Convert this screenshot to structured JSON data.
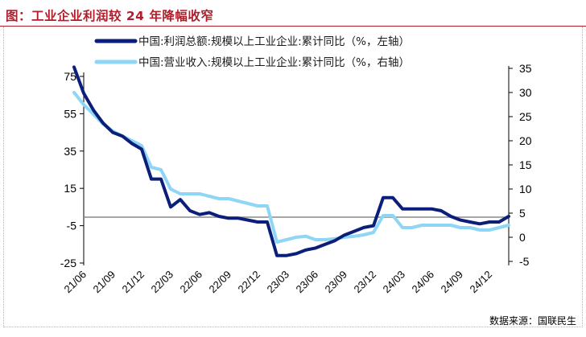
{
  "header": {
    "title": "图：工业企业利润较 24 年降幅收窄"
  },
  "footer": {
    "source": "数据来源：国联民生"
  },
  "chart_data": {
    "type": "line",
    "title": "图：工业企业利润较 24 年降幅收窄",
    "legend_position": "top-left",
    "grid": false,
    "x_ticks": [
      "21/06",
      "21/09",
      "21/12",
      "22/03",
      "22/06",
      "22/09",
      "22/12",
      "23/03",
      "23/06",
      "23/09",
      "23/12",
      "24/03",
      "24/06",
      "24/09",
      "24/12"
    ],
    "y_left": {
      "ticks": [
        75,
        55,
        35,
        15,
        -5,
        -25
      ],
      "range": [
        -25,
        80
      ]
    },
    "y_right": {
      "ticks": [
        35,
        30,
        25,
        20,
        15,
        10,
        5,
        0,
        -5
      ],
      "range": [
        -5,
        35
      ]
    },
    "series": [
      {
        "name": "中国:利润总额:规模以上工业企业:累计同比（%，左轴）",
        "axis": "left",
        "color": "#0b1f7a",
        "x": [
          "21/05",
          "21/06",
          "21/07",
          "21/08",
          "21/09",
          "21/10",
          "21/11",
          "21/12",
          "22/01",
          "22/02",
          "22/03",
          "22/04",
          "22/05",
          "22/06",
          "22/07",
          "22/08",
          "22/09",
          "22/10",
          "22/11",
          "22/12",
          "23/01",
          "23/02",
          "23/03",
          "23/04",
          "23/05",
          "23/06",
          "23/07",
          "23/08",
          "23/09",
          "23/10",
          "23/11",
          "23/12",
          "24/01",
          "24/02",
          "24/03",
          "24/04",
          "24/05",
          "24/06",
          "24/07",
          "24/08",
          "24/09",
          "24/10",
          "24/11",
          "24/12",
          "25/01",
          "25/02"
        ],
        "values": [
          80,
          66,
          57,
          50,
          45,
          43,
          39,
          36,
          20,
          20,
          5,
          9,
          3,
          1,
          2,
          0,
          -1,
          -1,
          -2,
          -3,
          -3,
          -21,
          -21,
          -20,
          -18,
          -17,
          -15,
          -13,
          -10,
          -8,
          -6,
          -5,
          10,
          10,
          4,
          4,
          4,
          4,
          3,
          0,
          -2,
          -3,
          -4,
          -3,
          -3,
          0
        ]
      },
      {
        "name": "中国:营业收入:规模以上工业企业:累计同比（%，右轴）",
        "axis": "right",
        "color": "#8ed6f5",
        "x": [
          "21/05",
          "21/06",
          "21/07",
          "21/08",
          "21/09",
          "21/10",
          "21/11",
          "21/12",
          "22/01",
          "22/02",
          "22/03",
          "22/04",
          "22/05",
          "22/06",
          "22/07",
          "22/08",
          "22/09",
          "22/10",
          "22/11",
          "22/12",
          "23/01",
          "23/02",
          "23/03",
          "23/04",
          "23/05",
          "23/06",
          "23/07",
          "23/08",
          "23/09",
          "23/10",
          "23/11",
          "23/12",
          "24/01",
          "24/02",
          "24/03",
          "24/04",
          "24/05",
          "24/06",
          "24/07",
          "24/08",
          "24/09",
          "24/10",
          "24/11",
          "24/12",
          "25/01",
          "25/02"
        ],
        "values": [
          30,
          27.5,
          25.5,
          23.5,
          22,
          21,
          20,
          19,
          14.5,
          14,
          10,
          9,
          9,
          9,
          8.5,
          8,
          8,
          7.5,
          7,
          6.5,
          6.5,
          -1,
          -0.5,
          0,
          0.2,
          -0.5,
          -0.5,
          -0.3,
          0,
          0.2,
          0.5,
          1,
          4.5,
          4.5,
          2,
          2,
          2.5,
          2.5,
          2.5,
          2.5,
          2,
          2,
          1.5,
          1.5,
          2,
          2.5
        ]
      }
    ]
  }
}
